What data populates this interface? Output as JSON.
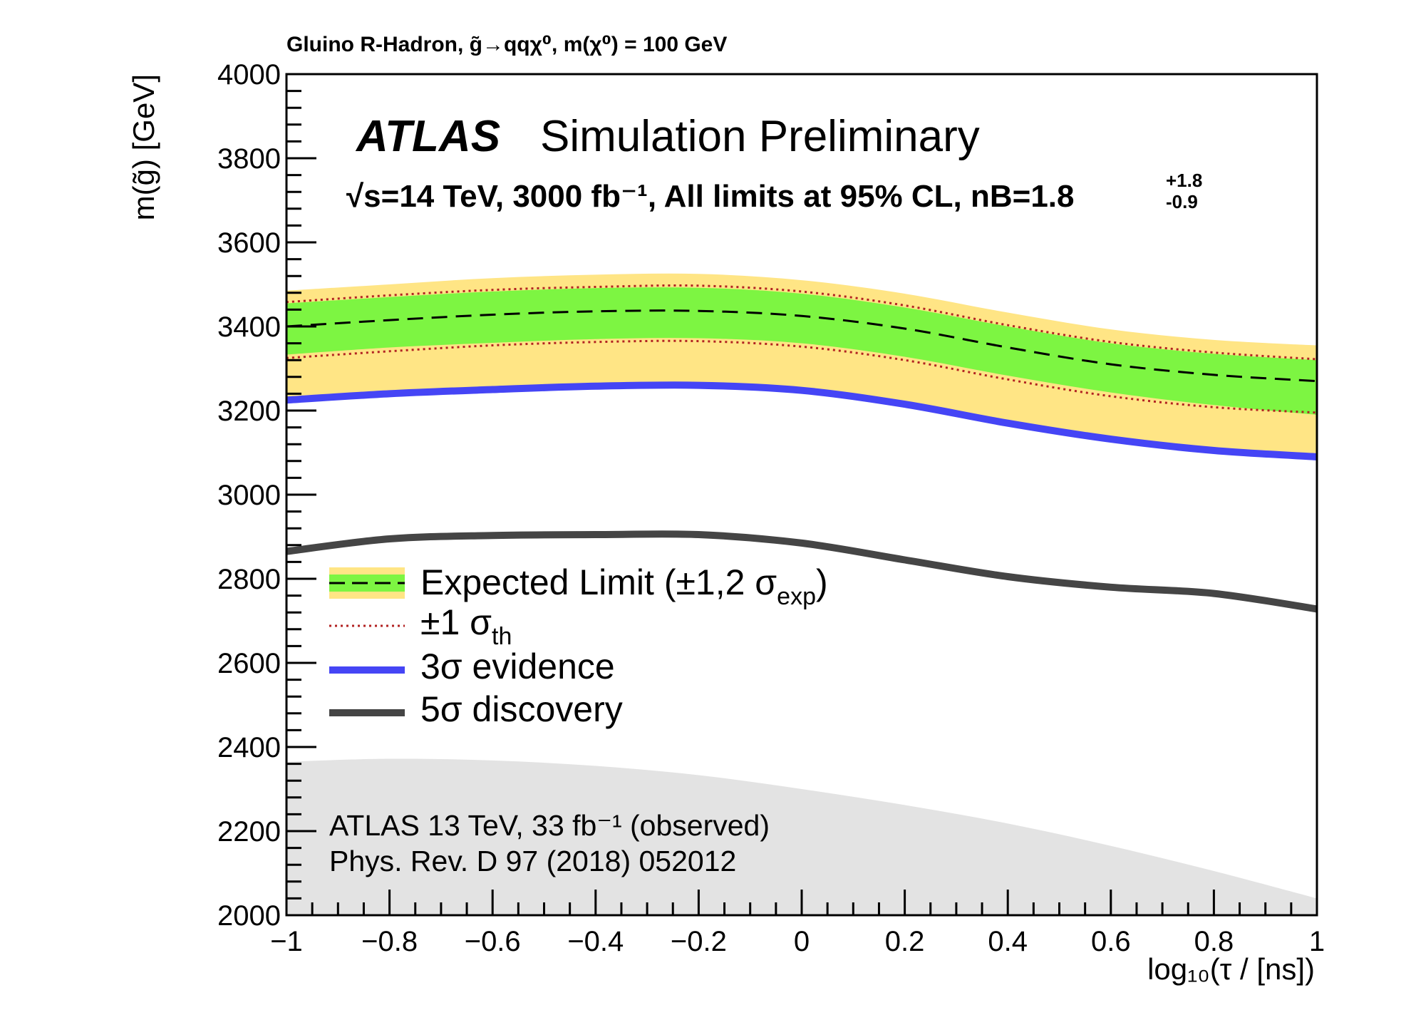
{
  "chart_data": {
    "type": "line",
    "title": "Gluino R-Hadron,  g̃→qqχ⁰, m(χ⁰) = 100 GeV",
    "experiment": "ATLAS",
    "status": "Simulation Preliminary",
    "conditions": "√s=14 TeV, 3000 fb⁻¹, All limits at 95% CL, nB=1.8",
    "nb_plus": "+1.8",
    "nb_minus": "-0.9",
    "xlabel": "log₁₀(τ / [ns])",
    "ylabel": "m(g̃) [GeV]",
    "xlim": [
      -1,
      1
    ],
    "ylim": [
      2000,
      4000
    ],
    "x_ticks": [
      -1,
      -0.8,
      -0.6,
      -0.4,
      -0.2,
      0,
      0.2,
      0.4,
      0.6,
      0.8,
      1
    ],
    "x_tick_labels": [
      "−1",
      "−0.8",
      "−0.6",
      "−0.4",
      "−0.2",
      "0",
      "0.2",
      "0.4",
      "0.6",
      "0.8",
      "1"
    ],
    "y_ticks": [
      2000,
      2200,
      2400,
      2600,
      2800,
      3000,
      3200,
      3400,
      3600,
      3800,
      4000
    ],
    "y_tick_labels": [
      "2000",
      "2200",
      "2400",
      "2600",
      "2800",
      "3000",
      "3200",
      "3400",
      "3600",
      "3800",
      "4000"
    ],
    "x": [
      -1,
      -0.8,
      -0.6,
      -0.4,
      -0.2,
      0,
      0.2,
      0.4,
      0.6,
      0.8,
      1
    ],
    "series": [
      {
        "name": "Expected Limit",
        "key": "expected",
        "values": [
          3400,
          3415,
          3428,
          3436,
          3437,
          3425,
          3395,
          3350,
          3310,
          3285,
          3270
        ]
      },
      {
        "name": "+1σ exp",
        "key": "exp_p1",
        "values": [
          3455,
          3470,
          3483,
          3491,
          3492,
          3478,
          3445,
          3400,
          3360,
          3335,
          3320
        ]
      },
      {
        "name": "−1σ exp",
        "key": "exp_m1",
        "values": [
          3333,
          3350,
          3361,
          3370,
          3372,
          3360,
          3328,
          3283,
          3243,
          3213,
          3190
        ]
      },
      {
        "name": "+2σ exp",
        "key": "exp_p2",
        "values": [
          3485,
          3500,
          3515,
          3523,
          3525,
          3510,
          3478,
          3433,
          3393,
          3368,
          3355
        ]
      },
      {
        "name": "−2σ exp",
        "key": "exp_m2",
        "values": [
          3220,
          3237,
          3250,
          3258,
          3261,
          3248,
          3215,
          3170,
          3130,
          3100,
          3090
        ]
      },
      {
        "name": "+1σ th",
        "key": "th_p1",
        "values": [
          3458,
          3474,
          3487,
          3494,
          3497,
          3483,
          3450,
          3403,
          3363,
          3338,
          3322
        ]
      },
      {
        "name": "−1σ th",
        "key": "th_m1",
        "values": [
          3325,
          3341,
          3355,
          3363,
          3365,
          3352,
          3320,
          3274,
          3234,
          3208,
          3195
        ]
      },
      {
        "name": "3σ evidence",
        "key": "evidence3",
        "values": [
          3225,
          3240,
          3250,
          3258,
          3260,
          3248,
          3215,
          3170,
          3132,
          3105,
          3090
        ]
      },
      {
        "name": "5σ discovery",
        "key": "discovery5",
        "values": [
          2865,
          2895,
          2903,
          2905,
          2905,
          2885,
          2845,
          2805,
          2780,
          2765,
          2728
        ]
      },
      {
        "name": "ATLAS 13 TeV, 33 fb⁻¹ (observed)",
        "key": "observed13",
        "values": [
          2365,
          2372,
          2368,
          2355,
          2333,
          2300,
          2262,
          2218,
          2165,
          2105,
          2040
        ]
      }
    ],
    "legend": [
      {
        "key": "expected",
        "label": "Expected Limit (±1,2 σ",
        "sub": "exp",
        "tail": ")"
      },
      {
        "key": "theory",
        "label": "±1 σ",
        "sub": "th",
        "tail": ""
      },
      {
        "key": "evidence3",
        "label": "3σ evidence",
        "sub": "",
        "tail": ""
      },
      {
        "key": "discovery5",
        "label": "5σ discovery",
        "sub": "",
        "tail": ""
      }
    ],
    "observed_annotation": {
      "line1": "ATLAS 13 TeV, 33 fb⁻¹ (observed)",
      "line2": "Phys. Rev. D 97 (2018) 052012"
    },
    "colors": {
      "band1": "#7df542",
      "band2": "#ffe585",
      "expected": "#000000",
      "theory": "#b22222",
      "evidence3": "#4545f5",
      "discovery5": "#454545",
      "observed": "#e3e3e3"
    }
  }
}
